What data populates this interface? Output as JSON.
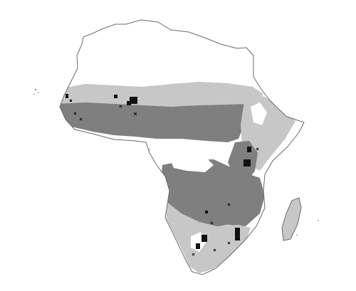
{
  "map": {
    "colors": {
      "background": "#ffffff",
      "outline": "#6b6b6b",
      "zone_unsuitable": "#ffffff",
      "zone_low": "#c7c7c7",
      "zone_high": "#7f7f7f",
      "markers": "#111111"
    },
    "legend": []
  }
}
